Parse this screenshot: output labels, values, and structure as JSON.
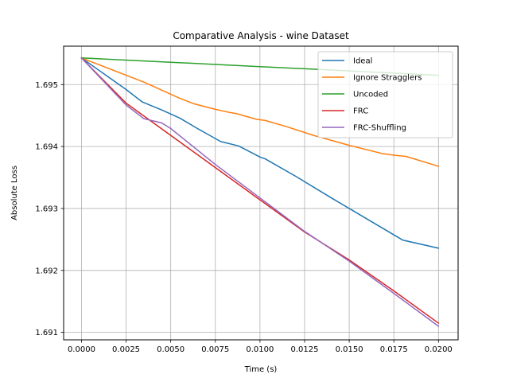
{
  "chart_data": {
    "type": "line",
    "title": "Comparative Analysis - wine Dataset",
    "xlabel": "Time (s)",
    "ylabel": "Absolute Loss",
    "xlim": [
      -0.001,
      0.0211
    ],
    "ylim": [
      1.69088,
      1.69562
    ],
    "xticks": [
      "0.0000",
      "0.0025",
      "0.0050",
      "0.0075",
      "0.0100",
      "0.0125",
      "0.0150",
      "0.0175",
      "0.0200"
    ],
    "xtick_values": [
      0,
      0.0025,
      0.005,
      0.0075,
      0.01,
      0.0125,
      0.015,
      0.0175,
      0.02
    ],
    "yticks": [
      "1.691",
      "1.692",
      "1.693",
      "1.694",
      "1.695"
    ],
    "ytick_values": [
      1.691,
      1.692,
      1.693,
      1.694,
      1.695
    ],
    "grid": true,
    "legend_position": "top-right",
    "series": [
      {
        "name": "Ideal",
        "color": "#1f77b4",
        "x": [
          0,
          0.0025,
          0.0034,
          0.0045,
          0.0055,
          0.0065,
          0.0078,
          0.0088,
          0.01,
          0.0103,
          0.012,
          0.014,
          0.016,
          0.018,
          0.02
        ],
        "y": [
          1.69543,
          1.69492,
          1.69472,
          1.69459,
          1.69446,
          1.69429,
          1.69408,
          1.69401,
          1.69383,
          1.6938,
          1.69352,
          1.69317,
          1.69283,
          1.69249,
          1.69236
        ]
      },
      {
        "name": "Ignore Stragglers",
        "color": "#ff7f0e",
        "x": [
          0,
          0.0025,
          0.0035,
          0.0045,
          0.0055,
          0.0063,
          0.0075,
          0.0083,
          0.0087,
          0.0098,
          0.0103,
          0.0115,
          0.013,
          0.015,
          0.0168,
          0.0175,
          0.0182,
          0.02
        ],
        "y": [
          1.69543,
          1.69515,
          1.69504,
          1.69491,
          1.69478,
          1.69469,
          1.6946,
          1.69455,
          1.69453,
          1.69444,
          1.69442,
          1.69432,
          1.69418,
          1.69402,
          1.69389,
          1.69386,
          1.69384,
          1.69368
        ]
      },
      {
        "name": "Uncoded",
        "color": "#2ca02c",
        "x": [
          0,
          0.005,
          0.01,
          0.015,
          0.02
        ],
        "y": [
          1.69543,
          1.69536,
          1.69529,
          1.69522,
          1.69515
        ]
      },
      {
        "name": "FRC",
        "color": "#d62728",
        "x": [
          0,
          0.0025,
          0.005,
          0.0075,
          0.01,
          0.0125,
          0.015,
          0.0175,
          0.02
        ],
        "y": [
          1.69543,
          1.6947,
          1.69418,
          1.69366,
          1.69314,
          1.69262,
          1.69217,
          1.69167,
          1.69115
        ]
      },
      {
        "name": "FRC-Shuffling",
        "color": "#9467bd",
        "x": [
          0,
          0.0025,
          0.0035,
          0.0045,
          0.005,
          0.0075,
          0.01,
          0.0125,
          0.015,
          0.0175,
          0.02
        ],
        "y": [
          1.69543,
          1.69467,
          1.69445,
          1.69438,
          1.69429,
          1.69371,
          1.69317,
          1.69263,
          1.69215,
          1.69163,
          1.6911
        ]
      }
    ]
  }
}
